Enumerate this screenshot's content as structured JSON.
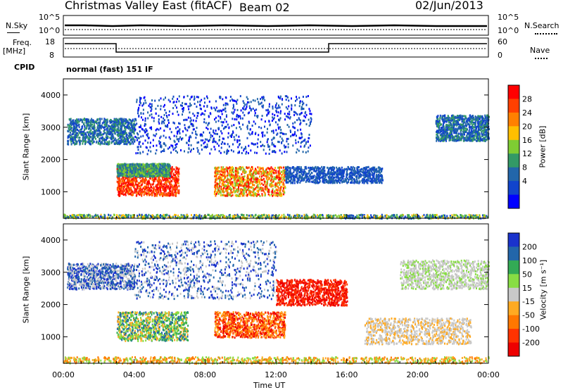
{
  "header": {
    "station_title": "Christmas Valley East (fitACF)",
    "beam": "Beam 02",
    "date": "02/Jun/2013"
  },
  "top_panels": {
    "nsky_label": "N.Sky",
    "nsky_ticks": [
      "10^5",
      "10^0"
    ],
    "nsearch_label": "N.Search",
    "nsearch_ticks": [
      "10^5",
      "10^0"
    ],
    "freq_label_line1": "Freq.",
    "freq_label_line2": "[MHz]",
    "freq_ticks": [
      "18",
      "8"
    ],
    "nave_label": "Nave",
    "nave_ticks": [
      "60",
      "0"
    ],
    "cpid_label": "CPID",
    "cpid_text": "normal (fast) 151 IF"
  },
  "chart_data": [
    {
      "type": "heatmap",
      "name": "power",
      "ylabel": "Slant Range [km]",
      "xlabel": "Time UT",
      "x_ticks": [
        "00:00",
        "04:00",
        "08:00",
        "12:00",
        "16:00",
        "20:00",
        "00:00"
      ],
      "xlim_hours": [
        0,
        24
      ],
      "y_ticks": [
        "1000",
        "2000",
        "3000",
        "4000"
      ],
      "ylim": [
        180,
        4500
      ],
      "colorbar": {
        "label": "Power [dB]",
        "ticks": [
          "28",
          "24",
          "20",
          "16",
          "12",
          "8",
          "4"
        ],
        "colors": [
          "#ff0000",
          "#ff4000",
          "#ff8000",
          "#ffbf00",
          "#7fcc33",
          "#339966",
          "#2266aa",
          "#1144cc",
          "#0000ff"
        ]
      }
    },
    {
      "type": "heatmap",
      "name": "velocity",
      "ylabel": "Slant Range [km]",
      "xlabel": "Time UT",
      "x_ticks": [
        "00:00",
        "04:00",
        "08:00",
        "12:00",
        "16:00",
        "20:00",
        "00:00"
      ],
      "xlim_hours": [
        0,
        24
      ],
      "y_ticks": [
        "1000",
        "2000",
        "3000",
        "4000"
      ],
      "ylim": [
        180,
        4500
      ],
      "colorbar": {
        "label": "Velocity [m s⁻¹]",
        "ticks": [
          "200",
          "100",
          "50",
          "15",
          "-15",
          "-50",
          "-100",
          "-200"
        ],
        "colors": [
          "#1a33cc",
          "#2266aa",
          "#33aa55",
          "#88dd44",
          "#c8c8c8",
          "#ffaa22",
          "#ff7700",
          "#ff3300",
          "#ee0000"
        ]
      }
    }
  ]
}
